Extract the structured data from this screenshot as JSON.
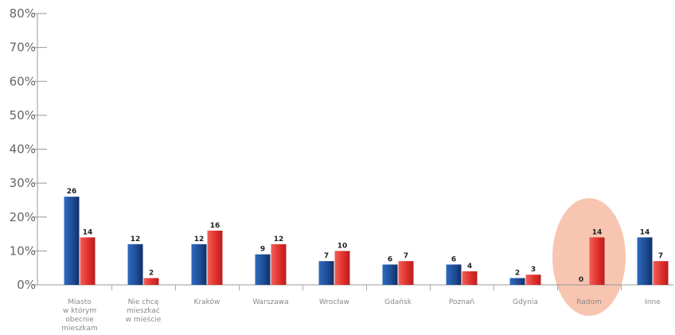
{
  "chart_data": {
    "type": "bar",
    "categories": [
      [
        "Miasto",
        "w którym",
        "obecnie",
        "mieszkam"
      ],
      [
        "Nie chcę",
        "mieszkać",
        "w mieście"
      ],
      [
        "Kraków"
      ],
      [
        "Warszawa"
      ],
      [
        "Wrocław"
      ],
      [
        "Gdańsk"
      ],
      [
        "Poznań"
      ],
      [
        "Gdynia"
      ],
      [
        "Radom"
      ],
      [
        "Inne"
      ]
    ],
    "series": [
      {
        "values": [
          26,
          12,
          12,
          9,
          7,
          6,
          6,
          2,
          0,
          14
        ],
        "color": "#1f4e96"
      },
      {
        "values": [
          14,
          2,
          16,
          12,
          10,
          7,
          4,
          3,
          14,
          7
        ],
        "color": "#e0302c"
      }
    ],
    "y_ticks": [
      "0%",
      "10%",
      "20%",
      "30%",
      "40%",
      "50%",
      "60%",
      "70%",
      "80%"
    ],
    "ylim": [
      0,
      80
    ],
    "highlight": {
      "category": "Radom",
      "color": "#f7c5b0"
    },
    "grid": false
  }
}
